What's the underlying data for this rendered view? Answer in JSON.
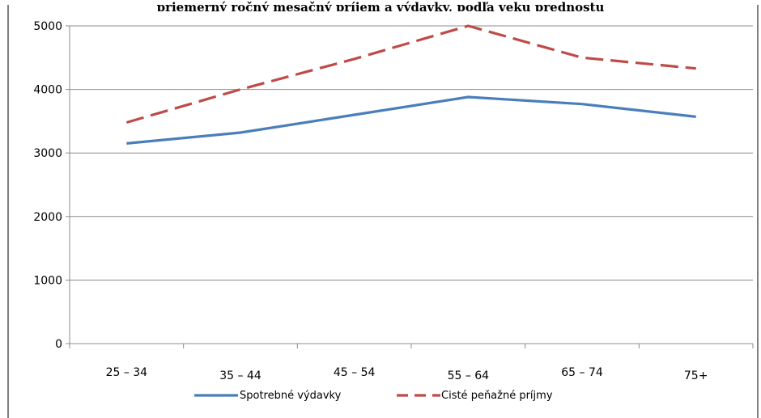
{
  "chart_data": {
    "type": "line",
    "title_fragment": "priemerný ročný mesačný príjem a výdavky, podľa veku prednostu",
    "categories": [
      "25 – 34",
      "35 – 44",
      "45 – 54",
      "55 – 64",
      "65 – 74",
      "75+"
    ],
    "series": [
      {
        "name": "Spotrebné výdavky",
        "values": [
          3150,
          3320,
          3600,
          3880,
          3770,
          3570
        ],
        "color": "#4a7ebb",
        "style": "solid"
      },
      {
        "name": "Cisté peňažné príjmy",
        "values": [
          3480,
          4000,
          4480,
          5000,
          4500,
          4330
        ],
        "color": "#be4b48",
        "style": "dashed"
      }
    ],
    "ylim": [
      0,
      5000
    ],
    "yticks": [
      0,
      1000,
      2000,
      3000,
      4000,
      5000
    ],
    "grid": true,
    "legend": "bottom"
  }
}
